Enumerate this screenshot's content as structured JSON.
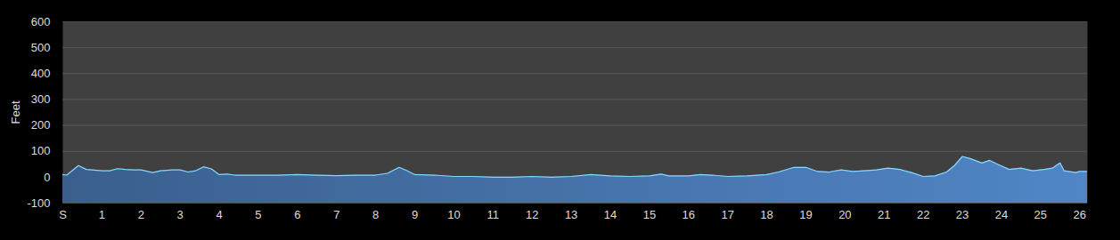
{
  "chart_data": {
    "type": "area",
    "y_label": "Feet",
    "color": "#4a7ab5",
    "grid": true,
    "xlim": [
      0,
      26.2
    ],
    "xticks": [
      {
        "value": 0,
        "label": "S"
      },
      1,
      2,
      3,
      4,
      5,
      6,
      7,
      8,
      9,
      10,
      11,
      12,
      13,
      14,
      15,
      16,
      17,
      18,
      19,
      20,
      21,
      22,
      23,
      24,
      25,
      26
    ],
    "ylim": [
      -100,
      600
    ],
    "yticks": [
      -100,
      0,
      100,
      200,
      300,
      400,
      500,
      600
    ],
    "x": [
      0,
      0.1,
      0.4,
      0.6,
      1.0,
      1.2,
      1.4,
      1.6,
      1.8,
      2.0,
      2.3,
      2.5,
      2.8,
      3.0,
      3.2,
      3.4,
      3.6,
      3.8,
      4.0,
      4.2,
      4.4,
      5.0,
      5.5,
      6.0,
      6.5,
      7.0,
      7.5,
      8.0,
      8.3,
      8.6,
      8.8,
      9.0,
      9.5,
      10.0,
      10.5,
      11.0,
      11.5,
      12.0,
      12.5,
      13.0,
      13.5,
      14.0,
      14.5,
      15.0,
      15.3,
      15.5,
      16.0,
      16.3,
      16.6,
      17.0,
      17.5,
      18.0,
      18.3,
      18.7,
      19.0,
      19.3,
      19.6,
      19.9,
      20.2,
      20.5,
      20.8,
      21.1,
      21.4,
      21.7,
      22.0,
      22.3,
      22.6,
      22.8,
      23.0,
      23.2,
      23.5,
      23.7,
      23.9,
      24.2,
      24.5,
      24.8,
      25.1,
      25.3,
      25.5,
      25.6,
      25.9,
      26.0,
      26.2
    ],
    "values": [
      10,
      8,
      45,
      30,
      25,
      25,
      33,
      30,
      28,
      28,
      18,
      25,
      28,
      28,
      20,
      25,
      40,
      32,
      10,
      12,
      8,
      8,
      8,
      10,
      8,
      6,
      8,
      8,
      15,
      38,
      25,
      10,
      8,
      3,
      3,
      0,
      0,
      3,
      0,
      3,
      10,
      5,
      3,
      5,
      12,
      5,
      5,
      10,
      8,
      3,
      5,
      10,
      20,
      38,
      38,
      22,
      20,
      28,
      22,
      25,
      28,
      35,
      30,
      18,
      3,
      5,
      20,
      45,
      80,
      72,
      55,
      65,
      50,
      30,
      35,
      25,
      30,
      35,
      55,
      25,
      18,
      22,
      22
    ]
  }
}
